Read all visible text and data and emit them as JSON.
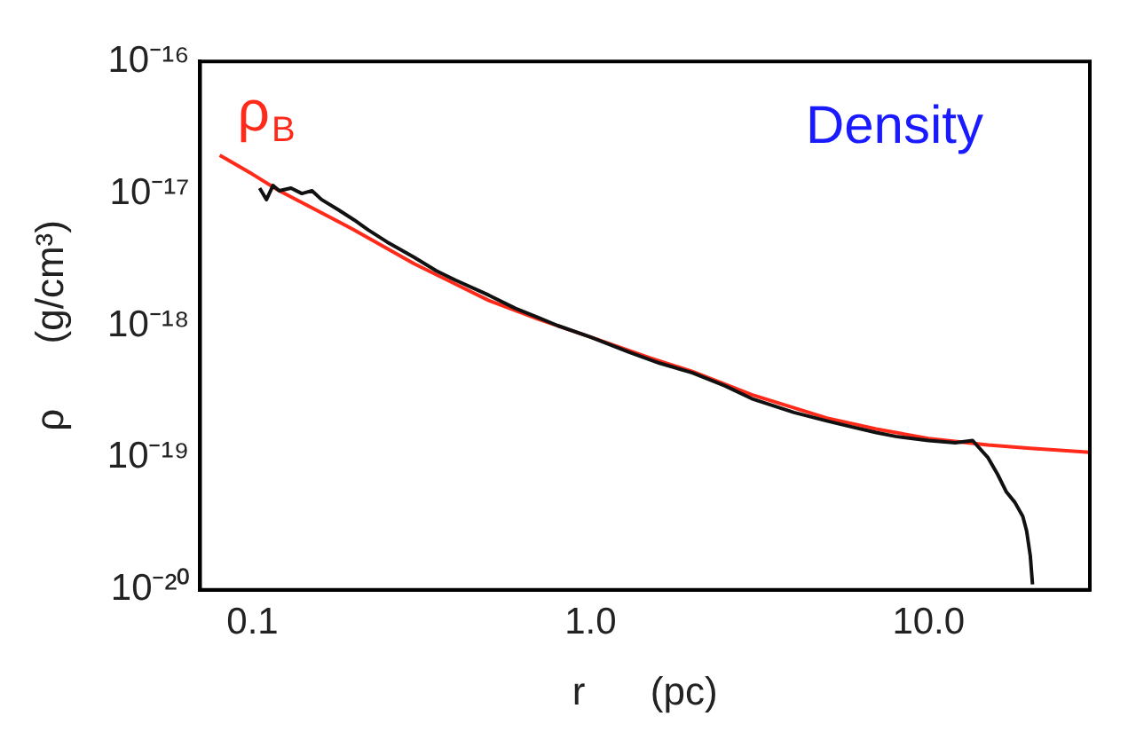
{
  "chart_data": {
    "type": "line",
    "xlabel": "r      (pc)",
    "ylabel": "ρ      (g/cm³)",
    "annotations": [
      "Density"
    ],
    "log": "xy",
    "grid": false,
    "legend": false,
    "marker": "none",
    "line_style": "solid",
    "xlim": [
      0.07,
      30
    ],
    "ylim": [
      1e-20,
      1e-16
    ],
    "xticks": [
      {
        "value": 0.1,
        "label": "0.1"
      },
      {
        "value": 1,
        "label": "1.0"
      },
      {
        "value": 10,
        "label": "10.0"
      }
    ],
    "yticks": [
      {
        "value": 1e-20,
        "label": "10⁻²⁰"
      },
      {
        "value": 1e-19,
        "label": "10⁻¹⁹"
      },
      {
        "value": 1e-18,
        "label": "10⁻¹⁸"
      },
      {
        "value": 1e-17,
        "label": "10⁻¹⁷"
      },
      {
        "value": 1e-16,
        "label": "10⁻¹⁶"
      }
    ],
    "series": [
      {
        "color": "#111111",
        "x": [
          0.105,
          0.11,
          0.115,
          0.12,
          0.13,
          0.14,
          0.15,
          0.16,
          0.18,
          0.2,
          0.22,
          0.25,
          0.3,
          0.35,
          0.4,
          0.5,
          0.6,
          0.7,
          0.8,
          1.0,
          1.3,
          1.6,
          2.0,
          2.5,
          3.0,
          4.0,
          5.0,
          6.0,
          7.0,
          8.0,
          10.0,
          12.0,
          13.5,
          15.0,
          16.0,
          17.0,
          18.0,
          19.0,
          19.5,
          20.0,
          20.3
        ],
        "values": [
          1.1e-17,
          9e-18,
          1.15e-17,
          1.05e-17,
          1.1e-17,
          1e-17,
          1.05e-17,
          9e-18,
          7.5e-18,
          6.3e-18,
          5.3e-18,
          4.3e-18,
          3.3e-18,
          2.6e-18,
          2.2e-18,
          1.7e-18,
          1.35e-18,
          1.15e-18,
          1e-18,
          8.2e-19,
          6.3e-19,
          5.2e-19,
          4.4e-19,
          3.5e-19,
          2.8e-19,
          2.2e-19,
          1.9e-19,
          1.7e-19,
          1.55e-19,
          1.45e-19,
          1.35e-19,
          1.3e-19,
          1.35e-19,
          1e-19,
          7.5e-20,
          5.5e-20,
          4.6e-20,
          3.6e-20,
          2.8e-20,
          1.8e-20,
          1.1e-20
        ]
      },
      {
        "name": "ρ$_{B}$",
        "color": "#ff2a1a",
        "x": [
          0.08,
          0.1,
          0.12,
          0.15,
          0.2,
          0.3,
          0.5,
          0.7,
          1.0,
          1.5,
          2.0,
          3.0,
          5.0,
          7.0,
          10.0,
          15.0,
          20.0,
          30.0
        ],
        "values": [
          1.95e-17,
          1.4e-17,
          1.05e-17,
          7.8e-18,
          5.3e-18,
          2.95e-18,
          1.55e-18,
          1.12e-18,
          8.2e-19,
          5.7e-19,
          4.5e-19,
          3e-19,
          2e-19,
          1.65e-19,
          1.4e-19,
          1.25e-19,
          1.18e-19,
          1.1e-19
        ]
      }
    ]
  }
}
